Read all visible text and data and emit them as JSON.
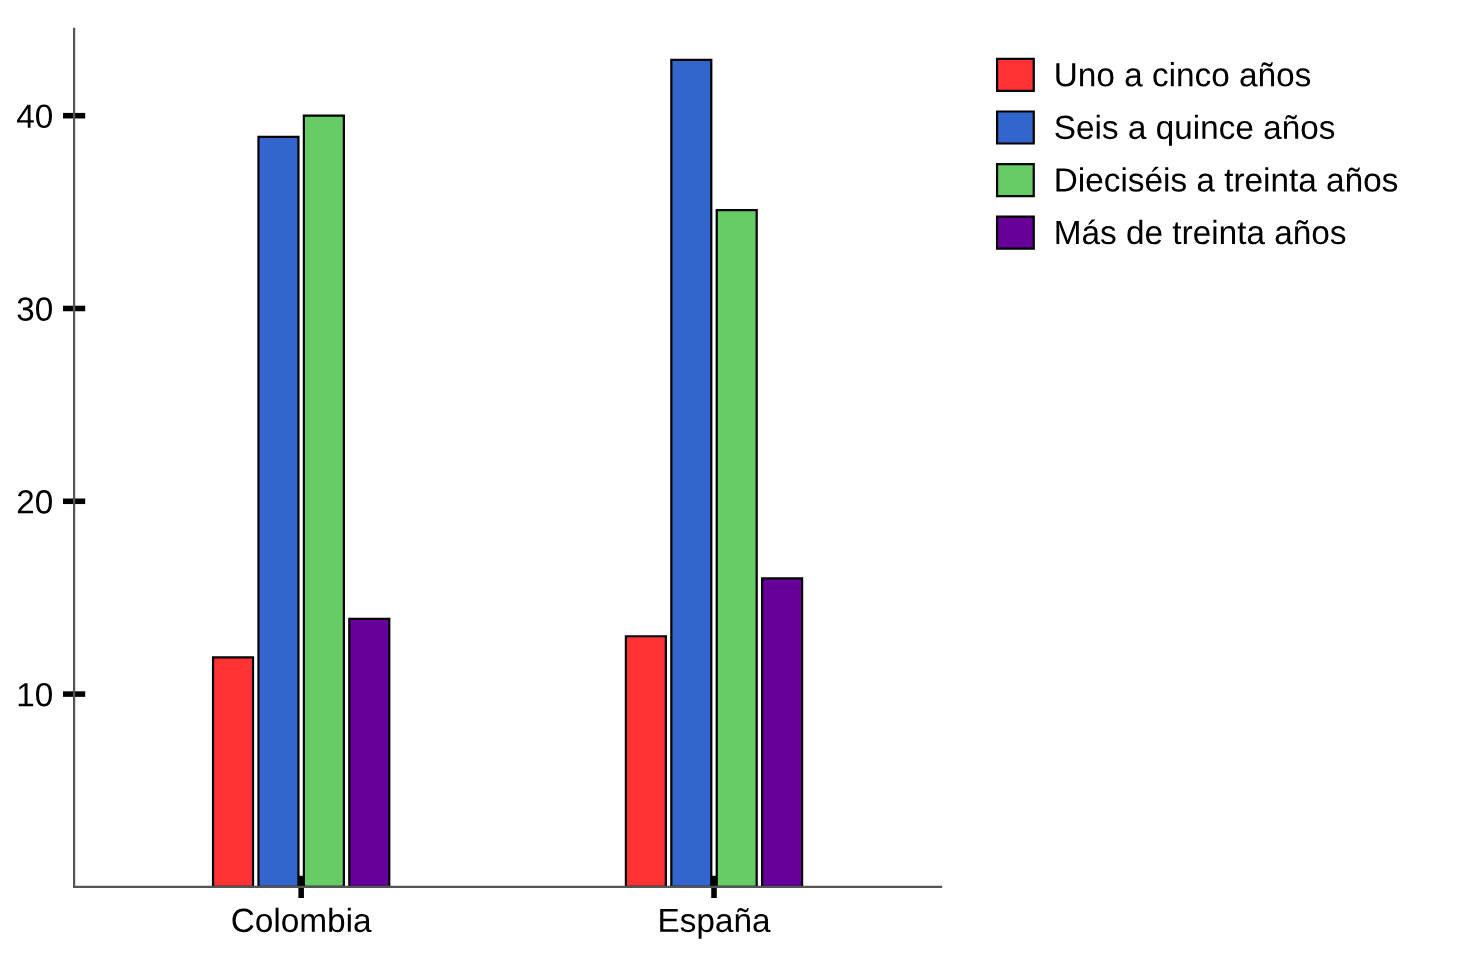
{
  "chart_data": {
    "type": "bar",
    "categories": [
      "Colombia",
      "España"
    ],
    "series": [
      {
        "name": "Uno a cinco años",
        "color": "#ff3333",
        "values": [
          11.9,
          13.0
        ]
      },
      {
        "name": "Seis a quince años",
        "color": "#3366cc",
        "values": [
          38.9,
          42.9
        ]
      },
      {
        "name": "Dieciséis a treinta años",
        "color": "#66cc66",
        "values": [
          40.0,
          35.1
        ]
      },
      {
        "name": "Más de treinta años",
        "color": "#660099",
        "values": [
          13.9,
          16.0
        ]
      }
    ],
    "ylim": [
      0,
      44.5
    ],
    "yticks": [
      10,
      20,
      30,
      40
    ],
    "grid": false,
    "legend": "top right"
  }
}
